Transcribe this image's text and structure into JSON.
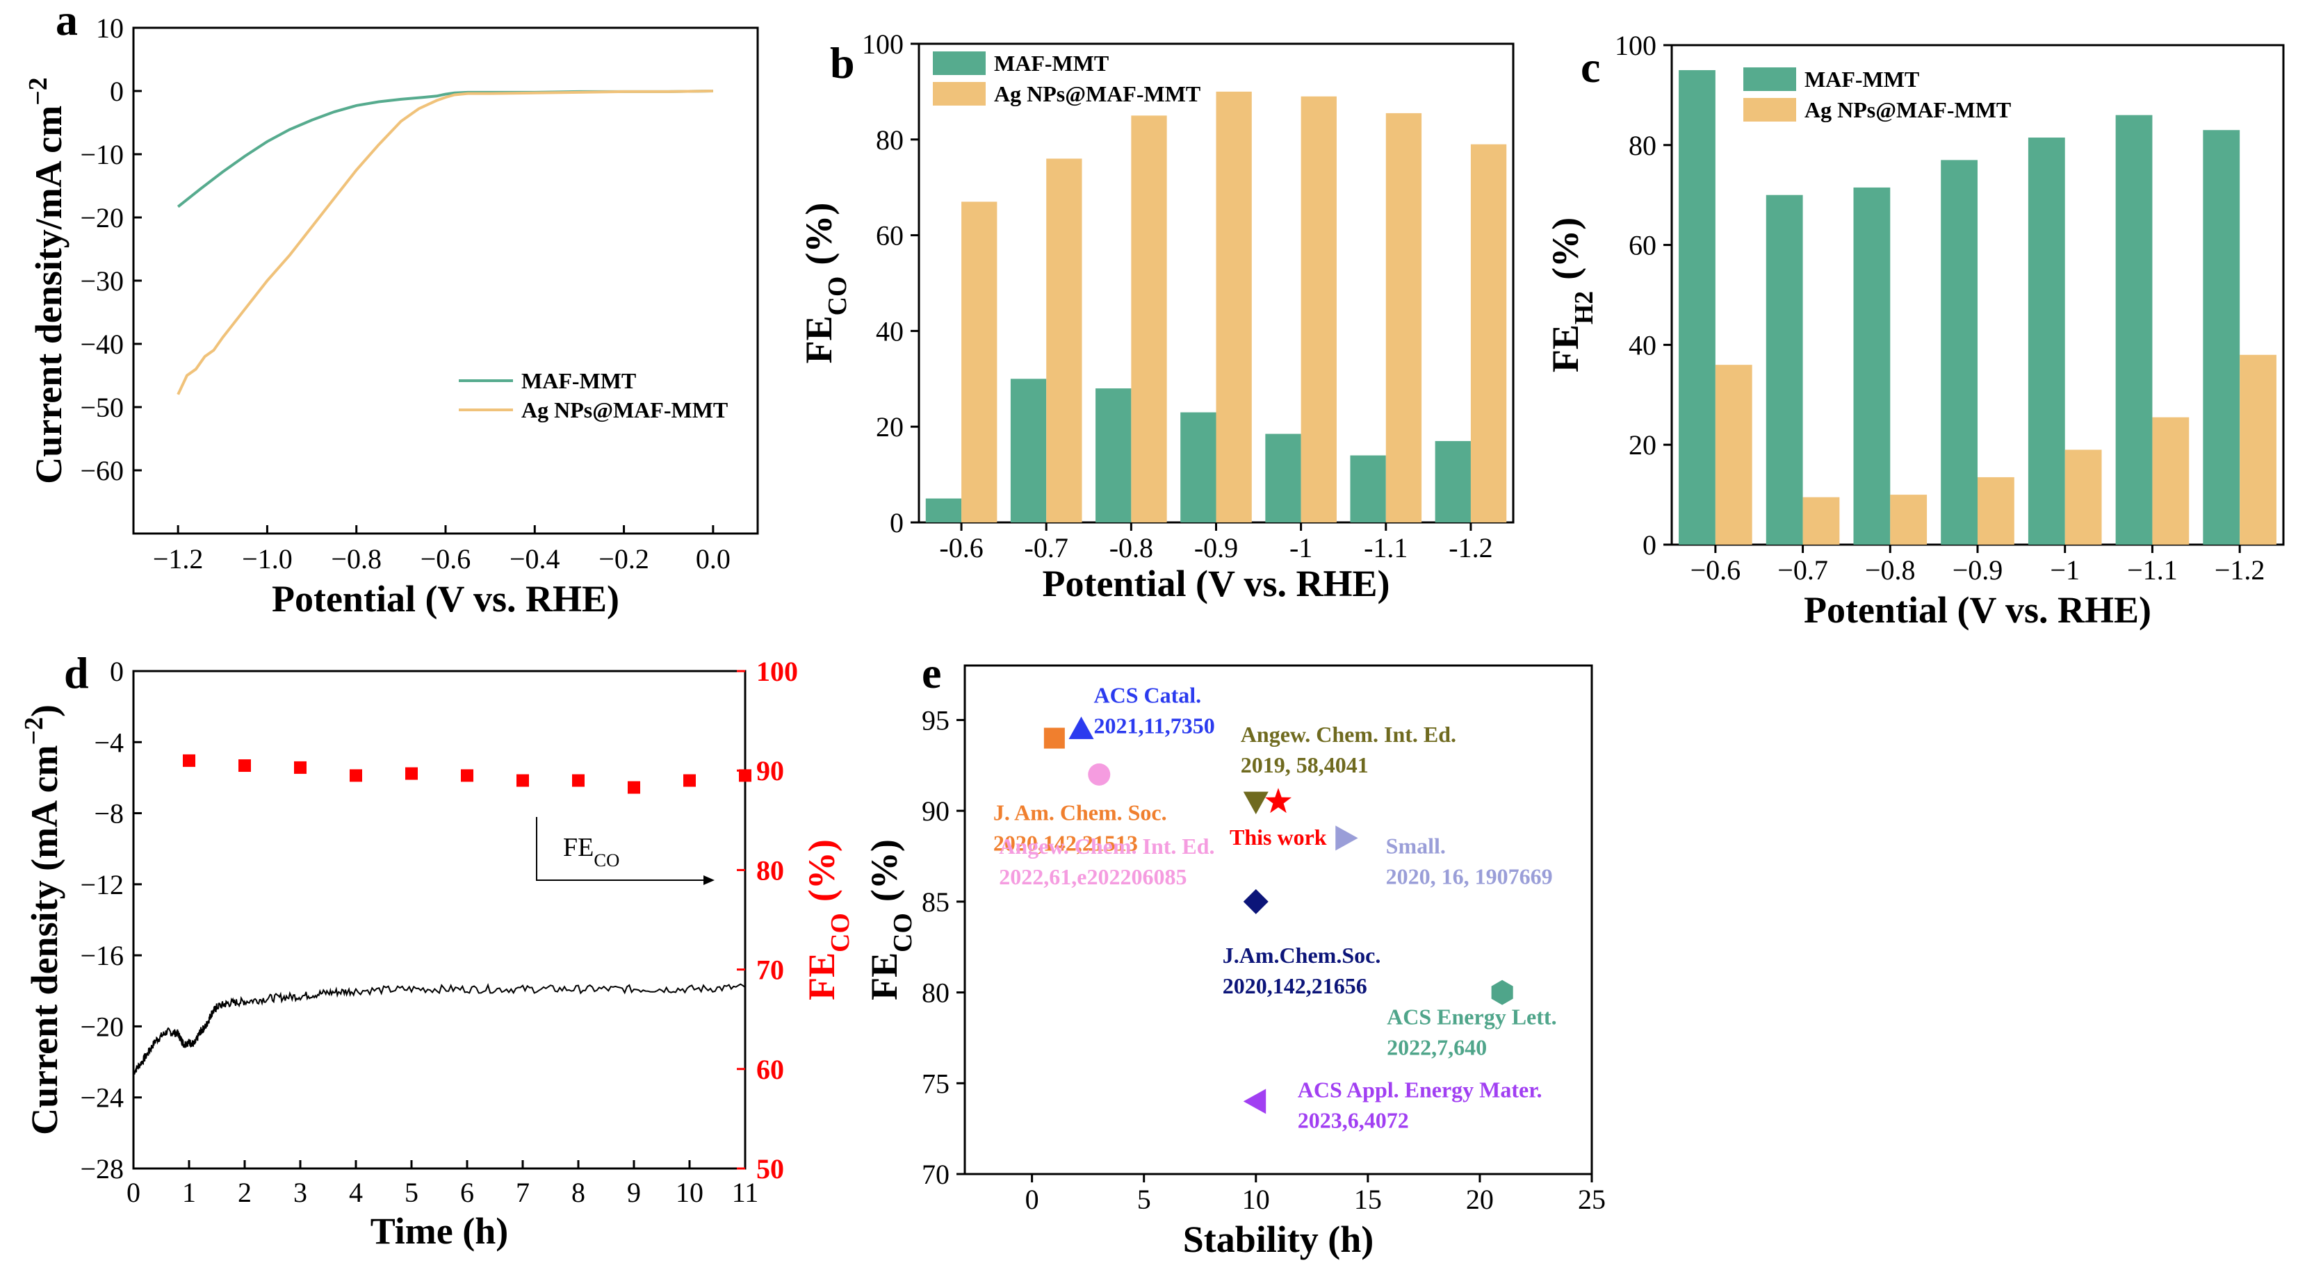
{
  "colors": {
    "green": "#56ab8e",
    "orange": "#f0c27a",
    "red": "#ff0000",
    "black": "#000000"
  },
  "chart_data": [
    {
      "panel": "a",
      "type": "line",
      "xlabel": "Potential (V vs. RHE)",
      "ylabel": "Current density/mA cm",
      "ylabel_sup": "−2",
      "xlim": [
        -1.3,
        0.1
      ],
      "ylim": [
        -70,
        10
      ],
      "xticks": [
        -1.2,
        -1.0,
        -0.8,
        -0.6,
        -0.4,
        -0.2,
        0.0
      ],
      "xtick_labels": [
        "−1.2",
        "−1.0",
        "−0.8",
        "−0.6",
        "−0.4",
        "−0.2",
        "0.0"
      ],
      "yticks": [
        10,
        0,
        -10,
        -20,
        -30,
        -40,
        -50,
        -60
      ],
      "ytick_labels": [
        "10",
        "0",
        "−10",
        "−20",
        "−30",
        "−40",
        "−50",
        "−60"
      ],
      "legend": "center-right",
      "series": [
        {
          "name": "MAF-MMT",
          "color": "#56ab8e",
          "x": [
            -1.2,
            -1.15,
            -1.1,
            -1.05,
            -1.0,
            -0.95,
            -0.9,
            -0.85,
            -0.8,
            -0.75,
            -0.7,
            -0.65,
            -0.62,
            -0.6,
            -0.58,
            -0.55,
            -0.5,
            -0.4,
            -0.3,
            -0.2,
            -0.1,
            0.0
          ],
          "y": [
            -18.3,
            -15.5,
            -12.8,
            -10.3,
            -8.0,
            -6.1,
            -4.6,
            -3.3,
            -2.3,
            -1.7,
            -1.3,
            -1.0,
            -0.8,
            -0.5,
            -0.3,
            -0.2,
            -0.2,
            -0.2,
            -0.1,
            -0.1,
            -0.1,
            0.0
          ]
        },
        {
          "name": "Ag NPs@MAF-MMT",
          "color": "#f0c27a",
          "x": [
            -1.2,
            -1.18,
            -1.16,
            -1.14,
            -1.12,
            -1.1,
            -1.05,
            -1.0,
            -0.95,
            -0.9,
            -0.85,
            -0.8,
            -0.75,
            -0.7,
            -0.66,
            -0.62,
            -0.6,
            -0.58,
            -0.55,
            -0.5,
            -0.4,
            -0.3,
            -0.2,
            -0.1,
            0.0
          ],
          "y": [
            -48.0,
            -45.0,
            -44.0,
            -42.0,
            -41.0,
            -39.0,
            -34.5,
            -30.0,
            -26.0,
            -21.5,
            -17.0,
            -12.5,
            -8.5,
            -4.8,
            -2.8,
            -1.5,
            -1.0,
            -0.6,
            -0.4,
            -0.4,
            -0.3,
            -0.2,
            -0.1,
            -0.1,
            0.0
          ]
        }
      ]
    },
    {
      "panel": "b",
      "type": "bar",
      "xlabel": "Potential (V vs. RHE)",
      "ylabel": "FE",
      "ylabel_sub": "CO",
      "ylabel_suffix": "(%)",
      "ylim": [
        0,
        100
      ],
      "yticks": [
        0,
        20,
        40,
        60,
        80,
        100
      ],
      "categories": [
        "-0.6",
        "-0.7",
        "-0.8",
        "-0.9",
        "-1",
        "-1.1",
        "-1.2"
      ],
      "legend": "top-left",
      "series": [
        {
          "name": "MAF-MMT",
          "color": "#56ab8e",
          "values": [
            5,
            30,
            28,
            23,
            18.5,
            14,
            17
          ]
        },
        {
          "name": "Ag NPs@MAF-MMT",
          "color": "#f0c27a",
          "values": [
            67,
            76,
            85,
            90,
            89,
            85.5,
            79
          ]
        }
      ]
    },
    {
      "panel": "c",
      "type": "bar",
      "xlabel": "Potential (V vs. RHE)",
      "ylabel": "FE",
      "ylabel_sub": "H2",
      "ylabel_suffix": "(%)",
      "ylim": [
        0,
        100
      ],
      "yticks": [
        0,
        20,
        40,
        60,
        80,
        100
      ],
      "categories": [
        "−0.6",
        "−0.7",
        "−0.8",
        "−0.9",
        "−1",
        "−1.1",
        "−1.2"
      ],
      "legend": "top-left",
      "series": [
        {
          "name": "MAF-MMT",
          "color": "#56ab8e",
          "values": [
            95,
            70,
            71.5,
            77,
            81.5,
            86,
            83
          ]
        },
        {
          "name": "Ag NPs@MAF-MMT",
          "color": "#f0c27a",
          "values": [
            36,
            9.5,
            10,
            13.5,
            19,
            25.5,
            38
          ]
        }
      ]
    },
    {
      "panel": "d",
      "type": "line",
      "xlabel": "Time (h)",
      "ylabel": "Current density (mA cm",
      "ylabel_sup": "−2",
      "ylabel_close": ")",
      "ylabel_right": "FE",
      "ylabel_right_sub": "CO",
      "ylabel_right_suffix": "(%)",
      "xlim": [
        0,
        11
      ],
      "ylim": [
        -28,
        0
      ],
      "ylim_right": [
        50,
        100
      ],
      "xticks": [
        0,
        1,
        2,
        3,
        4,
        5,
        6,
        7,
        8,
        9,
        10,
        11
      ],
      "yticks": [
        0,
        -4,
        -8,
        -12,
        -16,
        -20,
        -24,
        -28
      ],
      "ytick_labels": [
        "0",
        "−4",
        "−8",
        "−12",
        "−16",
        "−20",
        "−24",
        "−28"
      ],
      "yticks_right": [
        100,
        90,
        80,
        70,
        60,
        50
      ],
      "annotation": "FE",
      "annotation_sub": "CO",
      "series": [
        {
          "name": "Current density",
          "color": "#000000",
          "x": [
            0,
            0.2,
            0.4,
            0.6,
            0.8,
            0.9,
            1.0,
            1.1,
            1.2,
            1.3,
            1.4,
            1.5,
            1.7,
            2.0,
            2.5,
            3.0,
            3.5,
            4.0,
            5.0,
            6.0,
            7.0,
            8.0,
            9.0,
            10.0,
            11.0
          ],
          "y": [
            -22.6,
            -21.8,
            -20.8,
            -20.3,
            -20.4,
            -21.0,
            -20.9,
            -21.0,
            -20.3,
            -20.0,
            -19.3,
            -18.9,
            -18.7,
            -18.6,
            -18.4,
            -18.3,
            -18.1,
            -18.0,
            -17.9,
            -17.9,
            -17.9,
            -17.9,
            -17.9,
            -17.9,
            -17.8
          ]
        },
        {
          "name": "FE_CO",
          "color": "#ff0000",
          "axis": "right",
          "x": [
            1,
            2,
            3,
            4,
            5,
            6,
            7,
            8,
            9,
            10,
            11
          ],
          "y": [
            91,
            90.5,
            90.3,
            89.5,
            89.7,
            89.5,
            89,
            89,
            88.3,
            89,
            89.5
          ]
        }
      ]
    },
    {
      "panel": "e",
      "type": "scatter",
      "xlabel": "Stability (h)",
      "ylabel": "FE",
      "ylabel_sub": "CO",
      "ylabel_suffix": "(%)",
      "xlim": [
        -3,
        25
      ],
      "ylim": [
        70,
        98
      ],
      "xticks": [
        0,
        5,
        10,
        15,
        20,
        25
      ],
      "yticks": [
        70,
        75,
        80,
        85,
        90,
        95
      ],
      "points": [
        {
          "x": 2.2,
          "y": 94.5,
          "marker": "triangle-up",
          "color": "#2b3bef",
          "label": [
            "ACS Catal.",
            "2021,11,7350"
          ]
        },
        {
          "x": 1.0,
          "y": 94.0,
          "marker": "square",
          "color": "#f07f2e",
          "label": [
            "J. Am. Chem. Soc.",
            "2020,142,21513"
          ]
        },
        {
          "x": 3.0,
          "y": 92.0,
          "marker": "circle",
          "color": "#f59ce0",
          "label": [
            "Angew. Chem. Int. Ed.",
            "2022,61,e202206085"
          ]
        },
        {
          "x": 10.0,
          "y": 90.5,
          "marker": "triangle-down",
          "color": "#6f6a1f",
          "label": [
            "Angew. Chem. Int. Ed.",
            "2019, 58,4041"
          ]
        },
        {
          "x": 11.0,
          "y": 90.5,
          "marker": "star",
          "color": "#ff0000",
          "label": [
            "This work"
          ]
        },
        {
          "x": 14.0,
          "y": 88.5,
          "marker": "triangle-right",
          "color": "#9a9ed8",
          "label": [
            "Small.",
            "2020, 16, 1907669"
          ]
        },
        {
          "x": 10.0,
          "y": 85.0,
          "marker": "diamond",
          "color": "#0c1579",
          "label": [
            "J.Am.Chem.Soc.",
            "2020,142,21656"
          ]
        },
        {
          "x": 21.0,
          "y": 80.0,
          "marker": "hexagon",
          "color": "#4fa58a",
          "label": [
            "ACS Energy Lett.",
            "2022,7,640"
          ]
        },
        {
          "x": 10.0,
          "y": 74.0,
          "marker": "triangle-left",
          "color": "#a13ff2",
          "label": [
            "ACS Appl. Energy Mater.",
            "2023,6,4072"
          ]
        }
      ]
    }
  ]
}
